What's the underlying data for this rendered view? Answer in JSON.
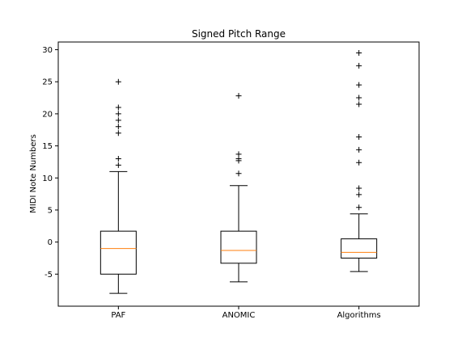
{
  "chart_data": {
    "type": "box",
    "title": "Signed Pitch Range",
    "xlabel": "",
    "ylabel": "MIDI Note Numbers",
    "ylim": [
      -10,
      31.2
    ],
    "yticks": [
      -5,
      0,
      5,
      10,
      15,
      20,
      25,
      30
    ],
    "grid": false,
    "categories": [
      "PAF",
      "ANOMIC",
      "Algorithms"
    ],
    "boxes": [
      {
        "name": "PAF",
        "whisker_low": -8,
        "q1": -5,
        "median": -1,
        "q3": 1.7,
        "whisker_high": 11,
        "outliers": [
          12,
          13,
          17,
          18,
          19,
          20,
          21,
          25
        ]
      },
      {
        "name": "ANOMIC",
        "whisker_low": -6.2,
        "q1": -3.3,
        "median": -1.3,
        "q3": 1.7,
        "whisker_high": 8.8,
        "outliers": [
          10.7,
          12.7,
          13,
          13.7,
          22.8
        ]
      },
      {
        "name": "Algorithms",
        "whisker_low": -4.6,
        "q1": -2.5,
        "median": -1.6,
        "q3": 0.5,
        "whisker_high": 4.4,
        "outliers": [
          5.4,
          7.4,
          8.4,
          12.4,
          14.4,
          16.4,
          21.5,
          22.5,
          24.5,
          27.5,
          29.5
        ]
      }
    ],
    "colors": {
      "box": "#000000",
      "median": "#ff7f0e",
      "outlier": "#000000"
    },
    "outlier_marker": "plus"
  }
}
